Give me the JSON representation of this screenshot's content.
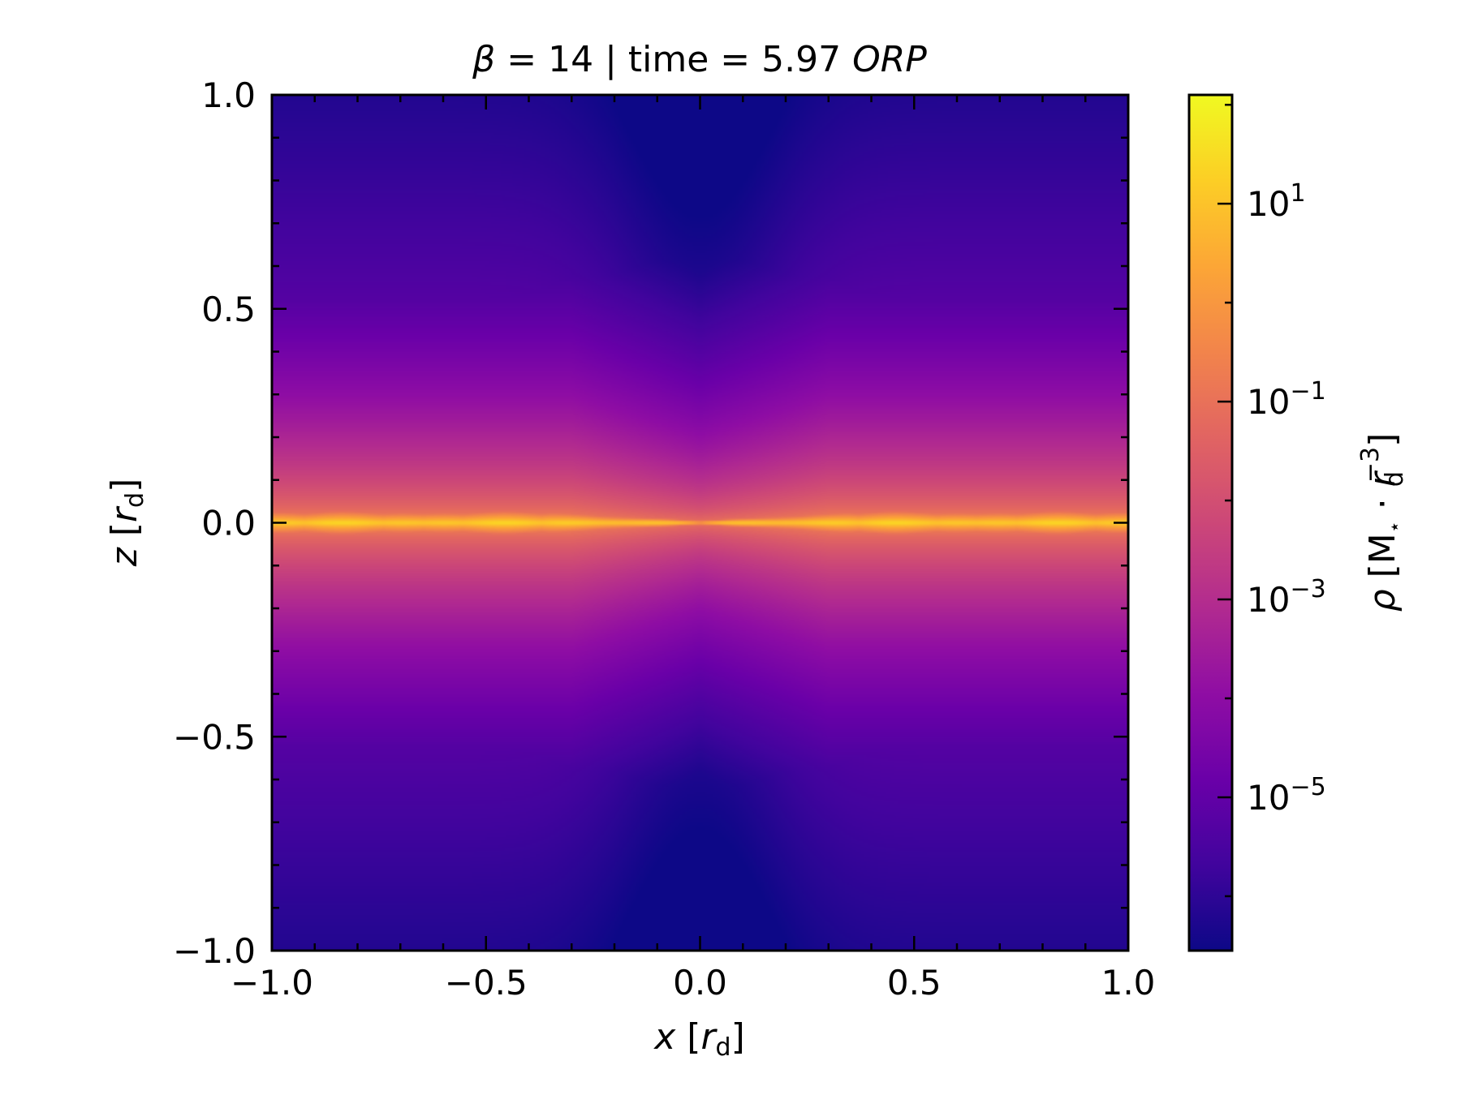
{
  "chart_data": {
    "type": "heatmap",
    "title": {
      "beta_symbol": "β",
      "beta_text": " = 14 | time = 5.97 ",
      "unit_italic": "ORP"
    },
    "xlabel": {
      "var": "x",
      "open": " [",
      "sym": "r",
      "sub": "d",
      "close": "]"
    },
    "ylabel": {
      "var": "z",
      "open": " [",
      "sym": "r",
      "sub": "d",
      "close": "]"
    },
    "colorbar_label": {
      "var": "ρ",
      "open": " [M",
      "star": "⋆",
      "dot": " · ",
      "sym": "r",
      "sub": "d",
      "sup": "−3",
      "close": "]"
    },
    "xlim": [
      -1.0,
      1.0
    ],
    "ylim": [
      -1.0,
      1.0
    ],
    "xticks": [
      -1.0,
      -0.5,
      0.0,
      0.5,
      1.0
    ],
    "xtick_labels": [
      "−1.0",
      "−0.5",
      "0.0",
      "0.5",
      "1.0"
    ],
    "yticks": [
      -1.0,
      -0.5,
      0.0,
      0.5,
      1.0
    ],
    "ytick_labels": [
      "−1.0",
      "−0.5",
      "0.0",
      "0.5",
      "1.0"
    ],
    "colorbar": {
      "scale": "log",
      "colormap": "plasma",
      "range_exp": [
        -6.55,
        2.1
      ],
      "ticks": [
        {
          "value_exp": 1,
          "base": "10",
          "exp": "1"
        },
        {
          "value_exp": -1,
          "base": "10",
          "exp": "−1"
        },
        {
          "value_exp": -3,
          "base": "10",
          "exp": "−3"
        },
        {
          "value_exp": -5,
          "base": "10",
          "exp": "−5"
        }
      ]
    },
    "field_description": {
      "background_log_rho_range": [
        -6.2,
        -3.2
      ],
      "midplane_log_rho_peak": 1.0,
      "disk_extent_x": [
        -1.0,
        1.0
      ]
    }
  }
}
